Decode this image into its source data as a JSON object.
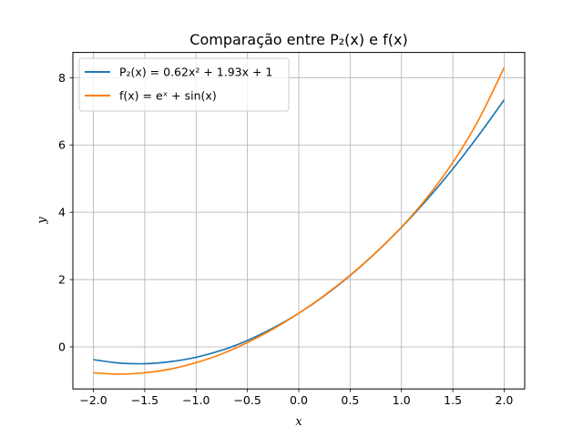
{
  "chart_data": {
    "type": "line",
    "title": "Comparação entre P₂(x) e f(x)",
    "xlabel": "x",
    "ylabel": "y",
    "xlim": [
      -2.2,
      2.2
    ],
    "ylim": [
      -1.25,
      8.75
    ],
    "x_ticks": [
      -2.0,
      -1.5,
      -1.0,
      -0.5,
      0.0,
      0.5,
      1.0,
      1.5,
      2.0
    ],
    "x_tick_labels": [
      "−2.0",
      "−1.5",
      "−1.0",
      "−0.5",
      "0.0",
      "0.5",
      "1.0",
      "1.5",
      "2.0"
    ],
    "y_ticks": [
      0,
      2,
      4,
      6,
      8
    ],
    "y_tick_labels": [
      "0",
      "2",
      "4",
      "6",
      "8"
    ],
    "grid": true,
    "legend_position": "top-left",
    "x": [
      -2.0,
      -1.75,
      -1.5,
      -1.25,
      -1.0,
      -0.75,
      -0.5,
      -0.25,
      0.0,
      0.25,
      0.5,
      0.75,
      1.0,
      1.25,
      1.5,
      1.75,
      2.0
    ],
    "series": [
      {
        "name": "P₂(x) = 0.62x² + 1.93x + 1",
        "color": "#1f77b4",
        "values": [
          -0.38,
          -0.48,
          -0.5,
          -0.44,
          -0.31,
          -0.1,
          0.19,
          0.56,
          1.0,
          1.52,
          2.12,
          2.8,
          3.55,
          4.38,
          5.29,
          6.28,
          7.34
        ]
      },
      {
        "name": "f(x) = eˣ + sin(x)",
        "color": "#ff7f0e",
        "values": [
          -0.77,
          -0.81,
          -0.77,
          -0.66,
          -0.47,
          -0.21,
          0.13,
          0.53,
          1.0,
          1.53,
          2.13,
          2.8,
          3.56,
          4.44,
          5.48,
          6.74,
          8.3
        ]
      }
    ]
  }
}
